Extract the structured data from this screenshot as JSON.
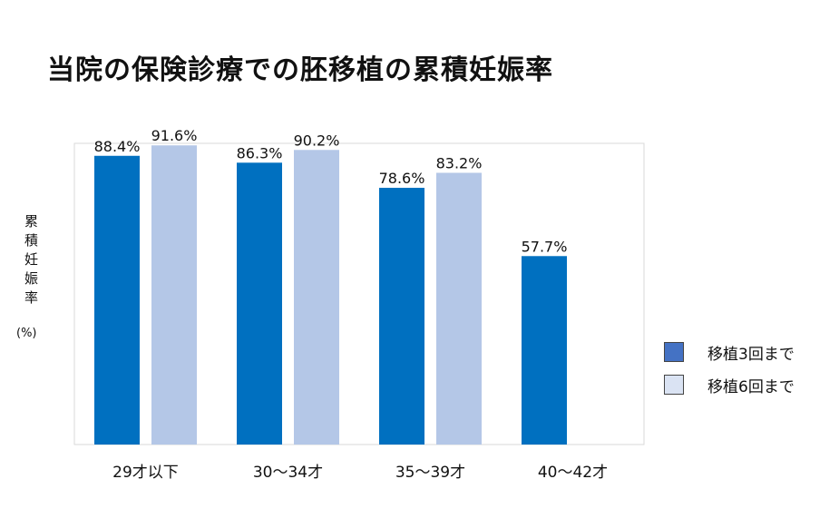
{
  "title": "当院の保険診療での胚移植の累積妊娠率",
  "ylabel": "累積妊娠率",
  "yunit": "(%)",
  "colors": {
    "series1": "#0070c0",
    "series2": "#b4c7e7",
    "legend_series1": "#4472c4",
    "legend_series2": "#dae3f3"
  },
  "chart_data": {
    "type": "bar",
    "title": "当院の保険診療での胚移植の累積妊娠率",
    "ylabel": "累積妊娠率 (%)",
    "xlabel": "",
    "ylim": [
      0,
      100
    ],
    "grid": false,
    "legend_position": "right",
    "categories": [
      "29才以下",
      "30～34才",
      "35～39才",
      "40～42才"
    ],
    "series": [
      {
        "name": "移植3回まで",
        "values": [
          88.4,
          86.3,
          78.6,
          57.7
        ],
        "labels": [
          "88.4%",
          "86.3%",
          "78.6%",
          "57.7%"
        ]
      },
      {
        "name": "移植6回まで",
        "values": [
          91.6,
          90.2,
          83.2,
          null
        ],
        "labels": [
          "91.6%",
          "90.2%",
          "83.2%",
          ""
        ]
      }
    ]
  }
}
